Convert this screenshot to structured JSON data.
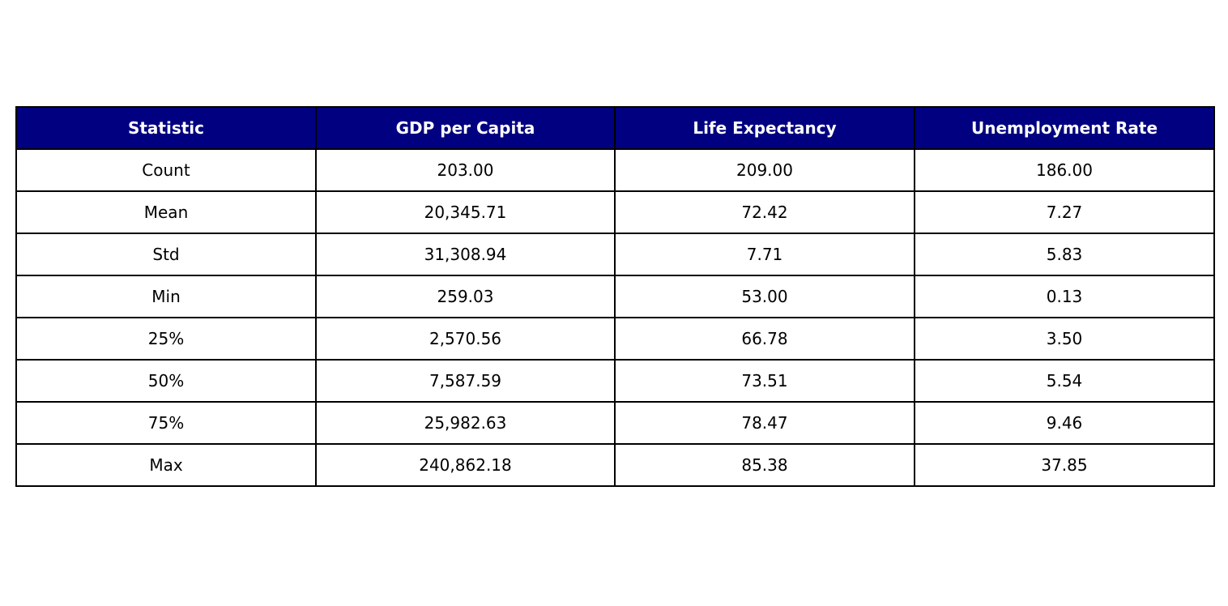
{
  "chart_data": {
    "type": "table",
    "columns": [
      "Statistic",
      "GDP per Capita",
      "Life Expectancy",
      "Unemployment Rate"
    ],
    "rows": [
      [
        "Count",
        "203.00",
        "209.00",
        "186.00"
      ],
      [
        "Mean",
        "20,345.71",
        "72.42",
        "7.27"
      ],
      [
        "Std",
        "31,308.94",
        "7.71",
        "5.83"
      ],
      [
        "Min",
        "259.03",
        "53.00",
        "0.13"
      ],
      [
        "25%",
        "2,570.56",
        "66.78",
        "3.50"
      ],
      [
        "50%",
        "7,587.59",
        "73.51",
        "5.54"
      ],
      [
        "75%",
        "25,982.63",
        "78.47",
        "9.46"
      ],
      [
        "Max",
        "240,862.18",
        "85.38",
        "37.85"
      ]
    ],
    "header_color": "#000080",
    "header_text_color": "#ffffff",
    "border_color": "#000000"
  }
}
